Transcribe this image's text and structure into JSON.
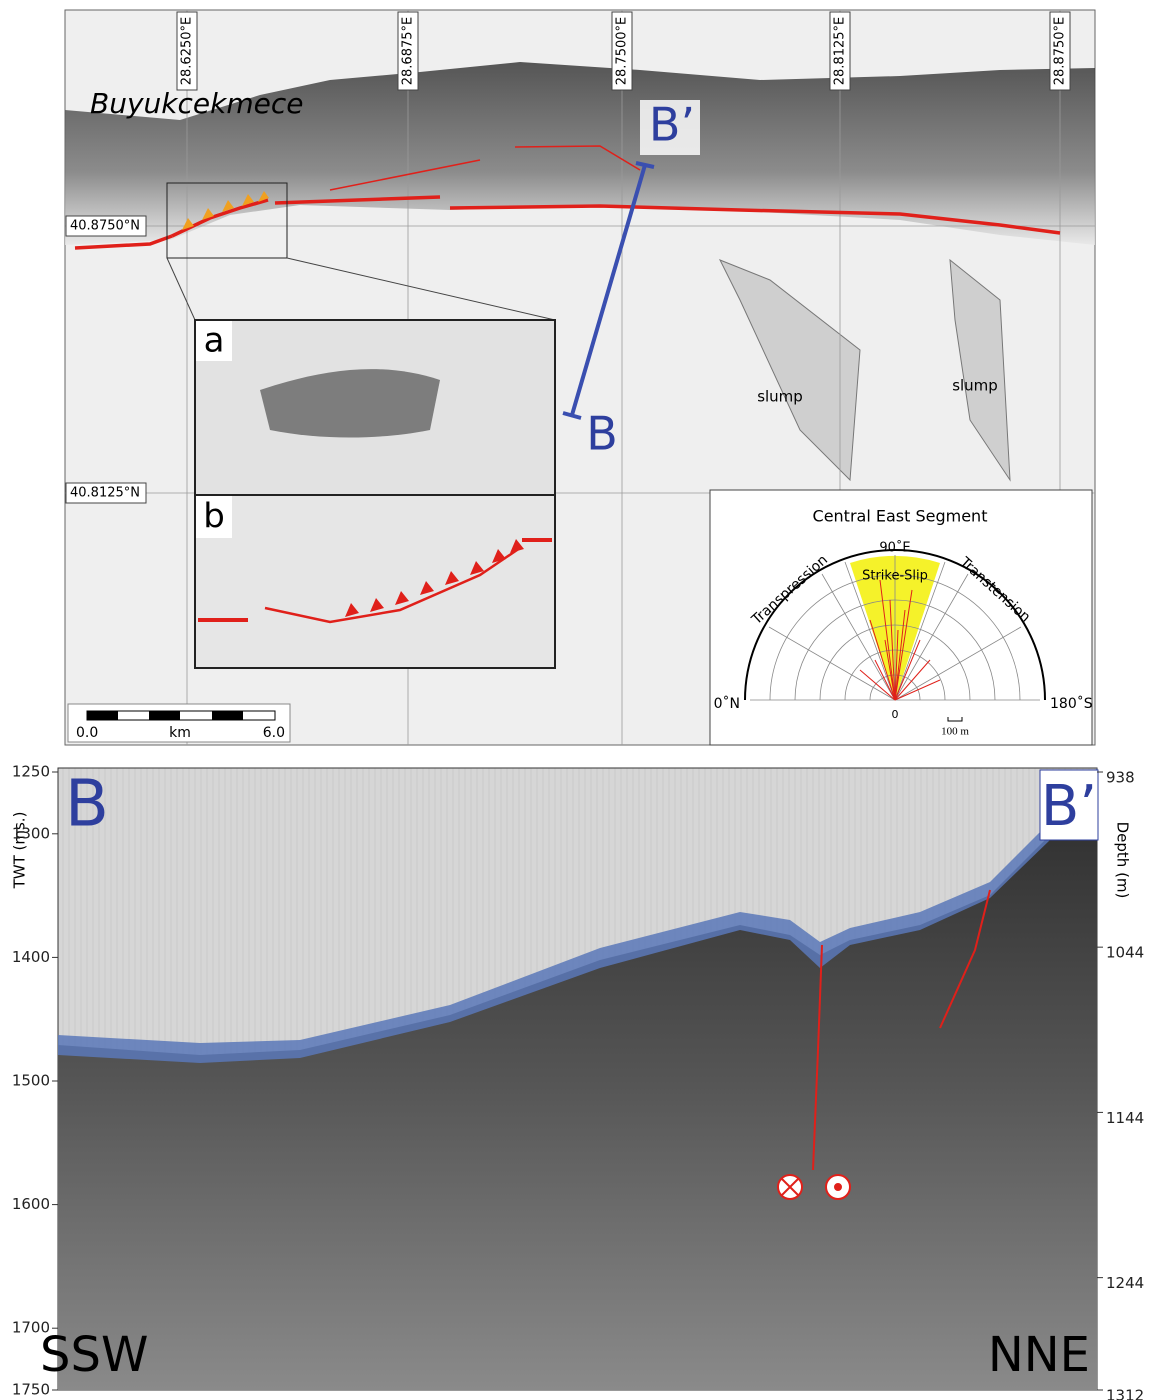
{
  "map": {
    "place_label": "Buyukcekmece",
    "lon_labels": [
      "28.6250°E",
      "28.6875°E",
      "28.7500°E",
      "28.8125°E",
      "28.8750°E"
    ],
    "lat_labels": [
      "40.8750°N",
      "40.8125°N"
    ],
    "profile_start": "B",
    "profile_end": "B’",
    "inset_labels": [
      "a",
      "b"
    ],
    "slump_labels": [
      "slump",
      "slump"
    ],
    "scale_bar": {
      "start": "0.0",
      "unit": "km",
      "end": "6.0"
    },
    "rose": {
      "title": "Central East Segment",
      "top_label": "90˚E",
      "sector_label": "Strike-Slip",
      "left_label": "Transpression",
      "right_label": "Transtension",
      "left_end": "0˚N",
      "right_end": "180˚S",
      "origin": "0",
      "scale": "100 m"
    }
  },
  "profile": {
    "y_label": "TWT (ms.)",
    "y_ticks": [
      1250,
      1300,
      1400,
      1500,
      1600,
      1700,
      1750
    ],
    "y2_label": "Depth (m)",
    "y2_ticks": [
      938,
      1044,
      1144,
      1244,
      1312
    ],
    "start_label": "B",
    "end_label": "B’",
    "left_direction": "SSW",
    "right_direction": "NNE"
  }
}
